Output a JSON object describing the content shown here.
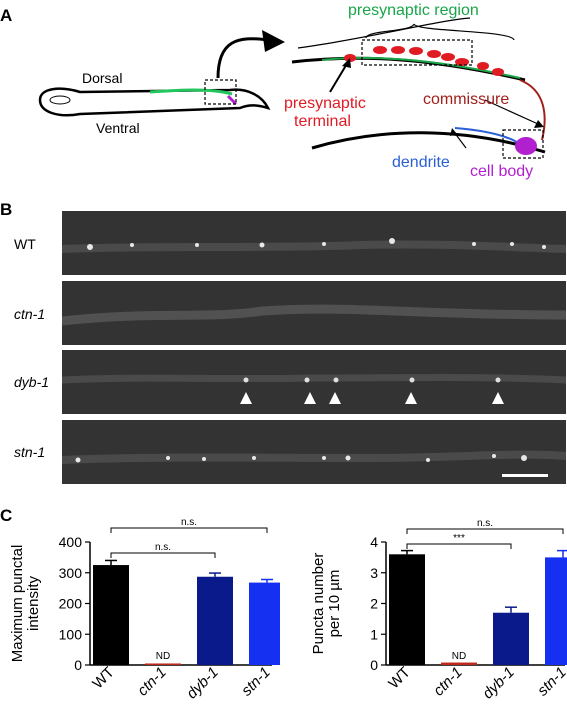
{
  "panelA": {
    "letter": "A",
    "labels": {
      "dorsal": "Dorsal",
      "ventral": "Ventral",
      "presynaptic_region": "presynaptic region",
      "presynaptic_terminal_1": "presynaptic",
      "presynaptic_terminal_2": "terminal",
      "commissure": "commissure",
      "dendrite": "dendrite",
      "cell_body": "cell body"
    },
    "colors": {
      "presynaptic_region": "#1aa548",
      "terminal": "#e01b24",
      "commissure": "#a0201c",
      "dendrite": "#2b5fd6",
      "cell_body": "#b21fcf"
    }
  },
  "panelB": {
    "letter": "B",
    "strips": [
      {
        "label": "WT"
      },
      {
        "label": "ctn-1"
      },
      {
        "label": "dyb-1"
      },
      {
        "label": "stn-1"
      }
    ]
  },
  "panelC": {
    "letter": "C",
    "chart_data": [
      {
        "type": "bar",
        "categories": [
          "WT",
          "ctn-1",
          "dyb-1",
          "stn-1"
        ],
        "values": [
          325,
          5,
          287,
          268
        ],
        "errors": [
          15,
          0,
          12,
          10
        ],
        "colors": [
          "#000000",
          "#c0281e",
          "#0a1a8a",
          "#1530f0"
        ],
        "ylabel": "Maximum punctal intensity",
        "ylim": [
          0,
          400
        ],
        "yticks": [
          "0",
          "100",
          "200",
          "300",
          "400"
        ],
        "annotations": {
          "nd": "ND",
          "sig1": "n.s.",
          "sig2": "n.s."
        }
      },
      {
        "type": "bar",
        "categories": [
          "WT",
          "ctn-1",
          "dyb-1",
          "stn-1"
        ],
        "values": [
          3.6,
          0.08,
          1.7,
          3.5
        ],
        "errors": [
          0.12,
          0,
          0.18,
          0.22
        ],
        "colors": [
          "#000000",
          "#c0281e",
          "#0a1a8a",
          "#1530f0"
        ],
        "ylabel": "Puncta number per 10 µm",
        "ylim": [
          0,
          4
        ],
        "yticks": [
          "0",
          "1",
          "2",
          "3",
          "4"
        ],
        "annotations": {
          "nd": "ND",
          "sig1": "***",
          "sig2": "n.s."
        }
      }
    ]
  }
}
